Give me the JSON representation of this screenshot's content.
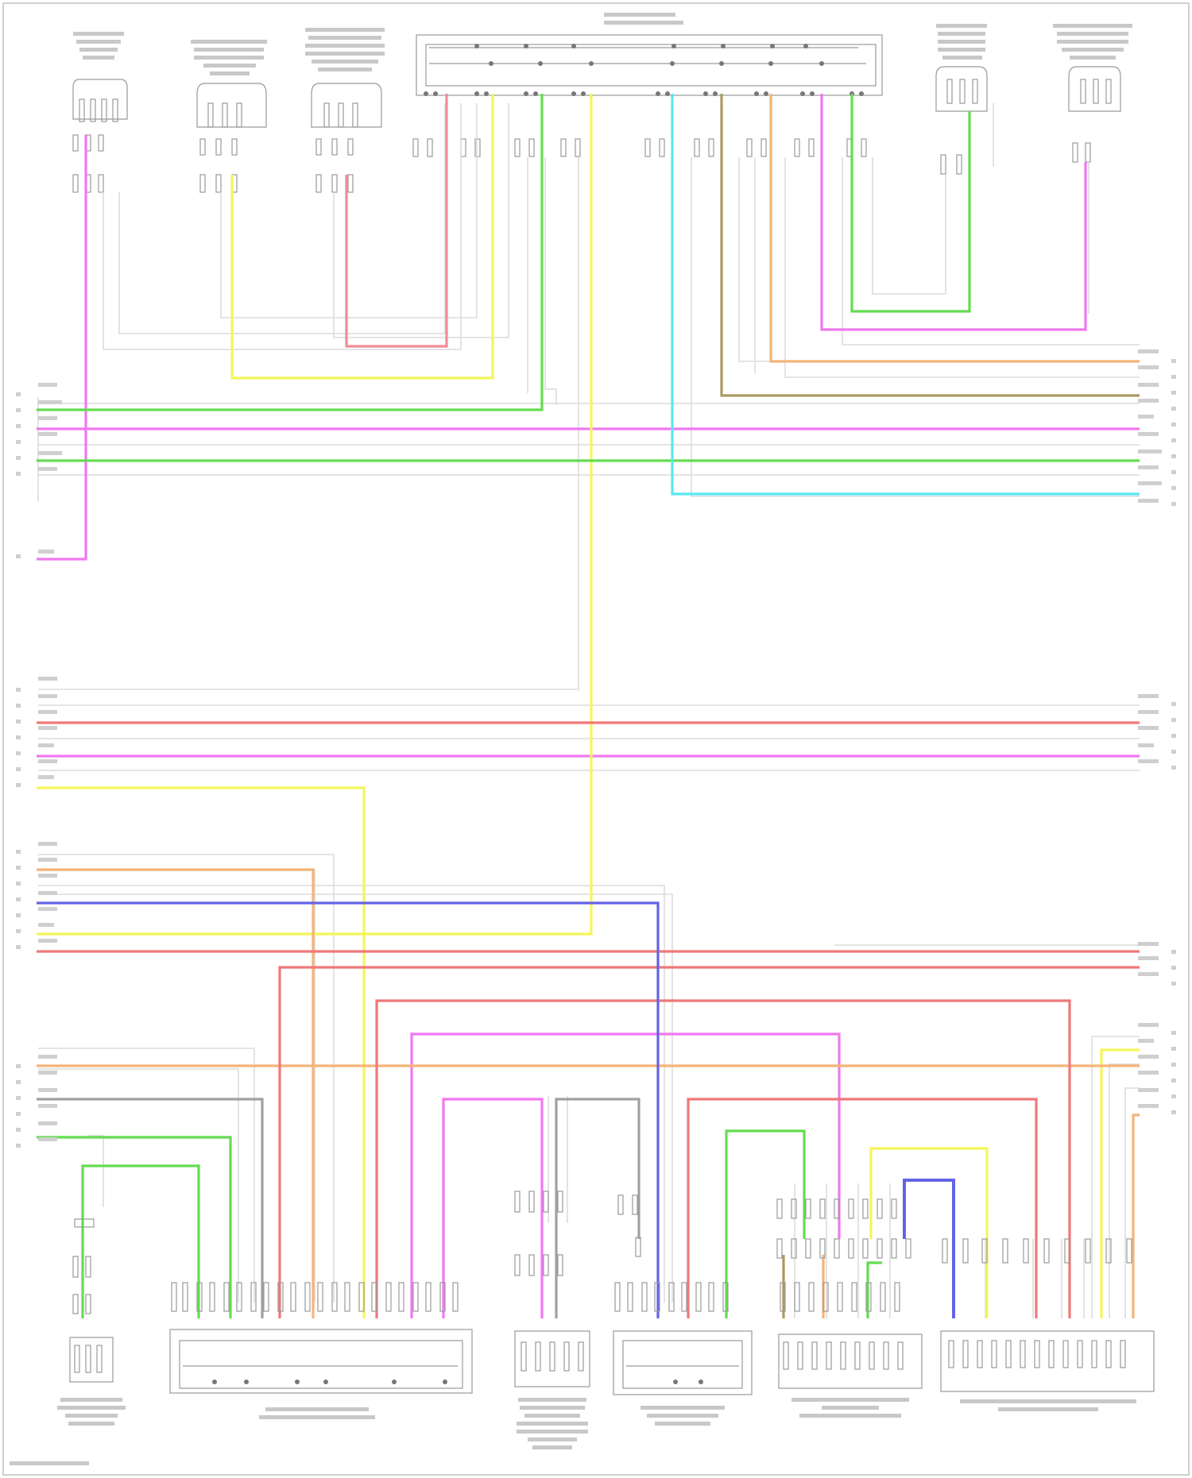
{
  "diagram": {
    "frame_color": "#d0d0d0",
    "component_stroke": "#9a9a9a",
    "text_blurred": true
  },
  "colors": {
    "pink": "#f078f0",
    "green": "#64dc50",
    "yellow": "#f5f55a",
    "red": "#f07878",
    "orange": "#f5b478",
    "cyan": "#5ae6f5",
    "brown": "#aa9a60",
    "blue": "#6464e6",
    "gray": "#a0a0a0"
  },
  "top_components": [
    {
      "id": "c1",
      "name": "comp-top-1"
    },
    {
      "id": "c2",
      "name": "comp-top-2"
    },
    {
      "id": "c3",
      "name": "comp-top-3"
    },
    {
      "id": "c4",
      "name": "comp-top-junction"
    },
    {
      "id": "c5",
      "name": "comp-top-5"
    },
    {
      "id": "c6",
      "name": "comp-top-6"
    }
  ],
  "bottom_components": [
    {
      "id": "b1",
      "name": "comp-bottom-1"
    },
    {
      "id": "b2",
      "name": "comp-bottom-2"
    },
    {
      "id": "b3",
      "name": "comp-bottom-3"
    },
    {
      "id": "b4",
      "name": "comp-bottom-4"
    },
    {
      "id": "b5",
      "name": "comp-bottom-5"
    },
    {
      "id": "b6",
      "name": "comp-bottom-6"
    }
  ]
}
